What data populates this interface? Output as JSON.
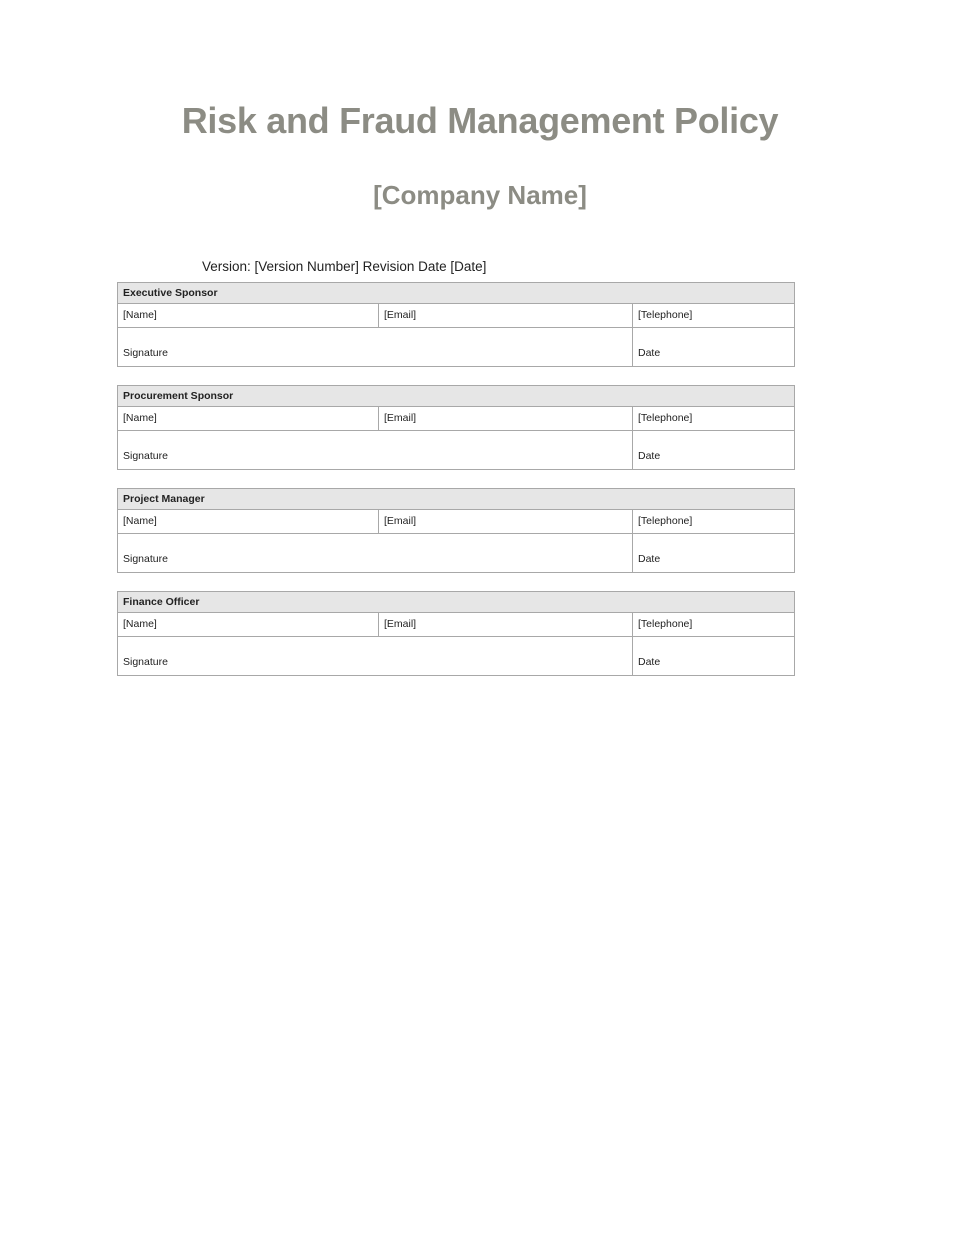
{
  "title": "Risk and Fraud Management Policy",
  "company": "[Company Name]",
  "version_line": "Version: [Version Number] Revision Date [Date]",
  "blocks": [
    {
      "role": "Executive Sponsor",
      "name": "[Name]",
      "email": "[Email]",
      "telephone": "[Telephone]",
      "signature": "Signature",
      "date": "Date"
    },
    {
      "role": "Procurement Sponsor",
      "name": "[Name]",
      "email": "[Email]",
      "telephone": "[Telephone]",
      "signature": "Signature",
      "date": "Date"
    },
    {
      "role": "Project Manager",
      "name": "[Name]",
      "email": "[Email]",
      "telephone": "[Telephone]",
      "signature": "Signature",
      "date": "Date"
    },
    {
      "role": "Finance Officer",
      "name": "[Name]",
      "email": "[Email]",
      "telephone": "[Telephone]",
      "signature": "Signature",
      "date": "Date"
    }
  ]
}
